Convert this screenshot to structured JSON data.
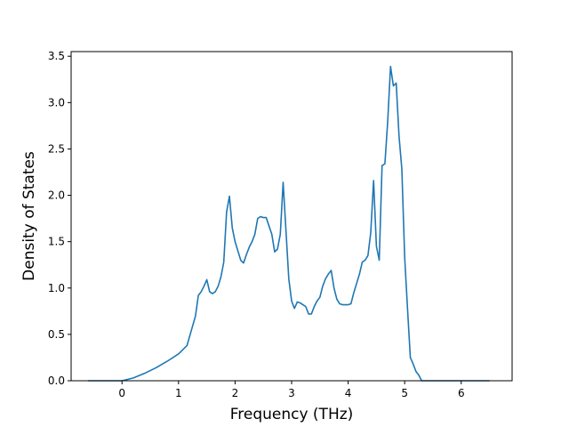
{
  "chart_data": {
    "type": "line",
    "title": "",
    "xlabel": "Frequency (THz)",
    "ylabel": "Density of States",
    "xlim": [
      -0.9,
      6.9
    ],
    "ylim": [
      0.0,
      3.55
    ],
    "xticks": [
      0,
      1,
      2,
      3,
      4,
      5,
      6
    ],
    "yticks": [
      0.0,
      0.5,
      1.0,
      1.5,
      2.0,
      2.5,
      3.0,
      3.5
    ],
    "ytick_labels": [
      "0.0",
      "0.5",
      "1.0",
      "1.5",
      "2.0",
      "2.5",
      "3.0",
      "3.5"
    ],
    "grid": false,
    "legend": "none",
    "colors": {
      "line": "#1f77b4",
      "axes": "#000000",
      "background": "#ffffff"
    },
    "series": [
      {
        "x": [
          -0.6,
          -0.2,
          0.0,
          0.2,
          0.4,
          0.6,
          0.8,
          1.0,
          1.15,
          1.3,
          1.35,
          1.4,
          1.45,
          1.5,
          1.55,
          1.6,
          1.65,
          1.7,
          1.75,
          1.8,
          1.85,
          1.9,
          1.95,
          2.0,
          2.05,
          2.1,
          2.15,
          2.2,
          2.25,
          2.3,
          2.35,
          2.4,
          2.45,
          2.5,
          2.55,
          2.6,
          2.65,
          2.7,
          2.75,
          2.8,
          2.85,
          2.9,
          2.95,
          3.0,
          3.05,
          3.1,
          3.15,
          3.2,
          3.25,
          3.3,
          3.35,
          3.4,
          3.45,
          3.5,
          3.55,
          3.6,
          3.65,
          3.7,
          3.75,
          3.8,
          3.85,
          3.9,
          3.95,
          4.0,
          4.05,
          4.1,
          4.15,
          4.2,
          4.25,
          4.3,
          4.35,
          4.4,
          4.45,
          4.5,
          4.55,
          4.6,
          4.65,
          4.7,
          4.75,
          4.8,
          4.85,
          4.9,
          4.95,
          5.0,
          5.05,
          5.1,
          5.15,
          5.2,
          5.25,
          5.3,
          5.35,
          5.4,
          5.45,
          5.5,
          5.55,
          5.6,
          5.7,
          5.8,
          5.85,
          5.9,
          6.0,
          6.2,
          6.5
        ],
        "y": [
          0.0,
          0.0,
          0.0,
          0.03,
          0.08,
          0.14,
          0.21,
          0.29,
          0.38,
          0.7,
          0.92,
          0.96,
          1.02,
          1.09,
          0.96,
          0.94,
          0.96,
          1.02,
          1.12,
          1.28,
          1.82,
          1.99,
          1.65,
          1.5,
          1.4,
          1.3,
          1.27,
          1.36,
          1.44,
          1.5,
          1.58,
          1.75,
          1.77,
          1.76,
          1.76,
          1.67,
          1.58,
          1.39,
          1.42,
          1.58,
          2.14,
          1.62,
          1.1,
          0.86,
          0.78,
          0.85,
          0.84,
          0.82,
          0.8,
          0.72,
          0.72,
          0.8,
          0.86,
          0.9,
          1.02,
          1.1,
          1.15,
          1.19,
          1.0,
          0.88,
          0.83,
          0.82,
          0.82,
          0.82,
          0.83,
          0.95,
          1.05,
          1.15,
          1.28,
          1.3,
          1.35,
          1.6,
          2.16,
          1.45,
          1.3,
          2.32,
          2.34,
          2.8,
          3.39,
          3.18,
          3.21,
          2.64,
          2.28,
          1.33,
          0.78,
          0.25,
          0.18,
          0.1,
          0.06,
          0.0,
          0.0,
          0.0,
          0.0,
          0.0,
          0.0,
          0.0,
          0.0,
          0.0,
          0.0,
          0.0,
          0.0,
          0.0,
          0.0
        ]
      }
    ]
  }
}
